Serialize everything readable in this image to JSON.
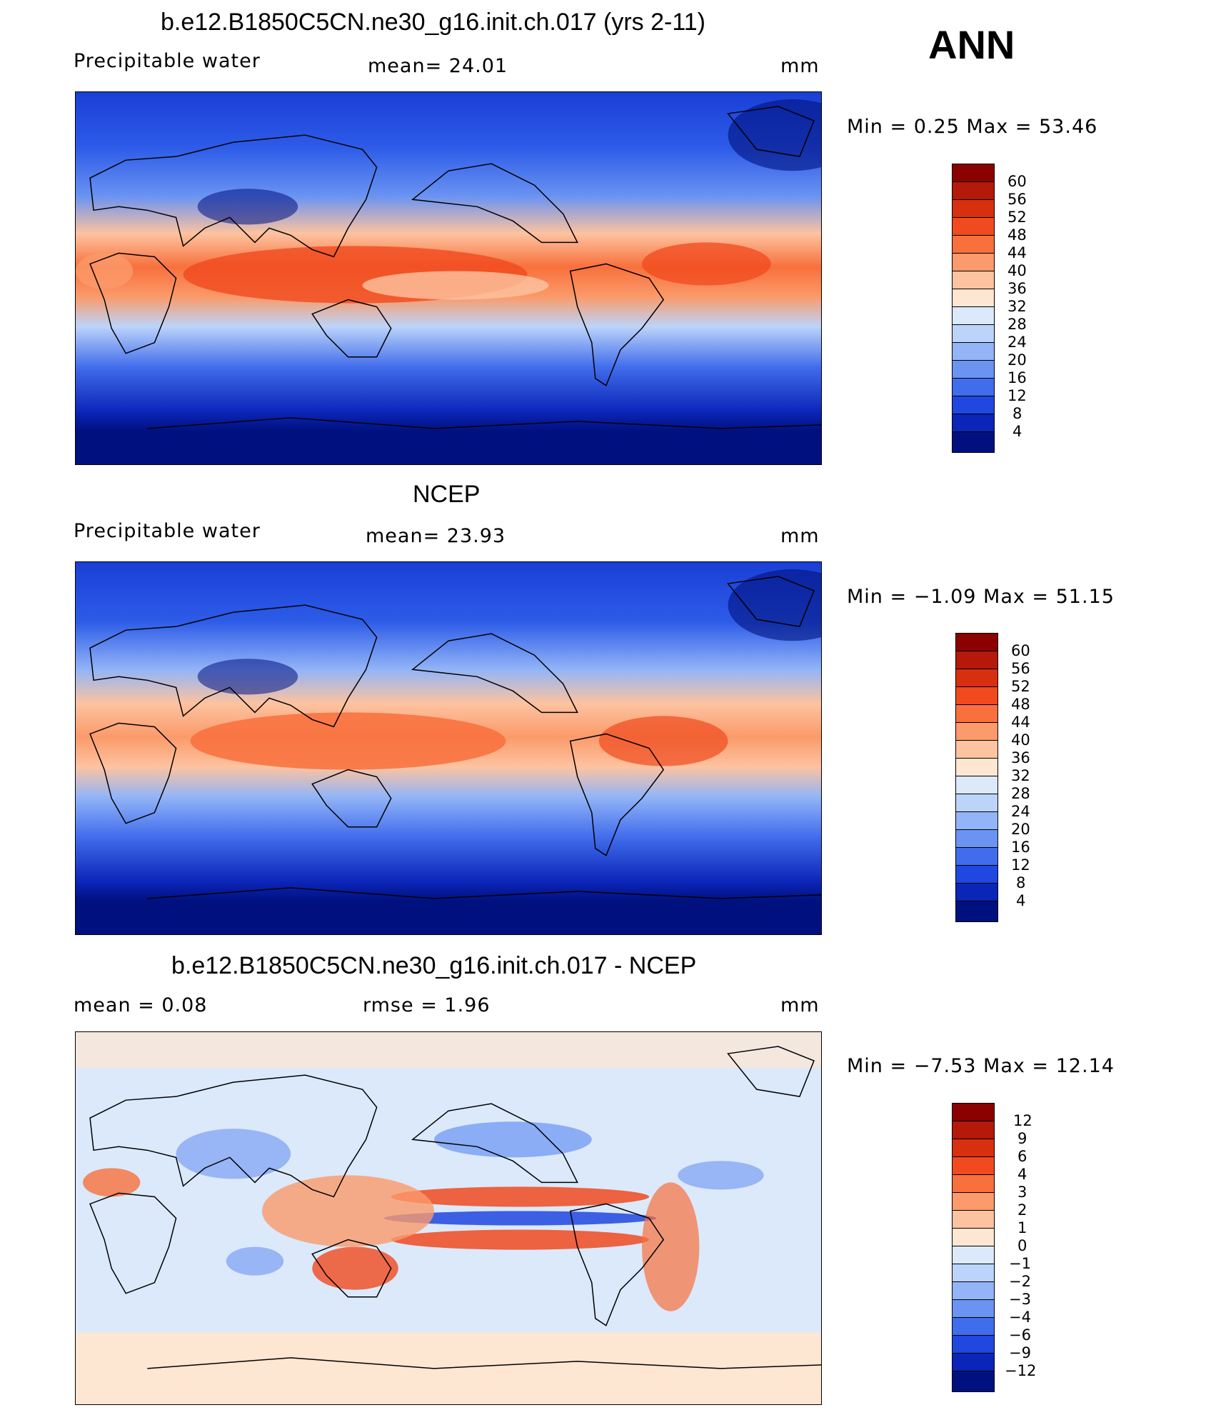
{
  "header": {
    "season": "ANN"
  },
  "panels": [
    {
      "id": "model",
      "title": "b.e12.B1850C5CN.ne30_g16.init.ch.017 (yrs 2-11)",
      "left_label": "Precipitable  water",
      "center_label": "mean=   24.01",
      "units": "mm",
      "minmax": "Min  =     0.25  Max  =    53.46",
      "colorbar": [
        "60",
        "56",
        "52",
        "48",
        "44",
        "40",
        "36",
        "32",
        "28",
        "24",
        "20",
        "16",
        "12",
        "8",
        "4"
      ],
      "colors": [
        "#8b0000",
        "#b4190a",
        "#d7300f",
        "#f04a1e",
        "#f8703c",
        "#fb9a6a",
        "#fdc3a0",
        "#fde6d2",
        "#dbe9fb",
        "#bcd4fa",
        "#93b5f7",
        "#6a93f2",
        "#416ceb",
        "#2047df",
        "#0b25b8",
        "#00117f"
      ]
    },
    {
      "id": "obs",
      "title": "NCEP",
      "left_label": "Precipitable  water",
      "center_label": "mean=   23.93",
      "units": "mm",
      "minmax": "Min  =   −1.09  Max  =    51.15",
      "colorbar": [
        "60",
        "56",
        "52",
        "48",
        "44",
        "40",
        "36",
        "32",
        "28",
        "24",
        "20",
        "16",
        "12",
        "8",
        "4"
      ],
      "colors": [
        "#8b0000",
        "#b4190a",
        "#d7300f",
        "#f04a1e",
        "#f8703c",
        "#fb9a6a",
        "#fdc3a0",
        "#fde6d2",
        "#dbe9fb",
        "#bcd4fa",
        "#93b5f7",
        "#6a93f2",
        "#416ceb",
        "#2047df",
        "#0b25b8",
        "#00117f"
      ]
    },
    {
      "id": "diff",
      "title": "b.e12.B1850C5CN.ne30_g16.init.ch.017 - NCEP",
      "left_label": "mean  =      0.08",
      "center_label": "rmse  =      1.96",
      "units": "mm",
      "minmax": "Min  =   −7.53  Max  =    12.14",
      "colorbar": [
        "12",
        "9",
        "6",
        "4",
        "3",
        "2",
        "1",
        "0",
        "−1",
        "−2",
        "−3",
        "−4",
        "−6",
        "−9",
        "−12"
      ],
      "colors": [
        "#8b0000",
        "#b4190a",
        "#d7300f",
        "#f04a1e",
        "#f8703c",
        "#fb9a6a",
        "#fdc3a0",
        "#fde6d2",
        "#dbe9fb",
        "#bcd4fa",
        "#93b5f7",
        "#6a93f2",
        "#416ceb",
        "#2047df",
        "#0b25b8",
        "#00117f"
      ]
    }
  ]
}
